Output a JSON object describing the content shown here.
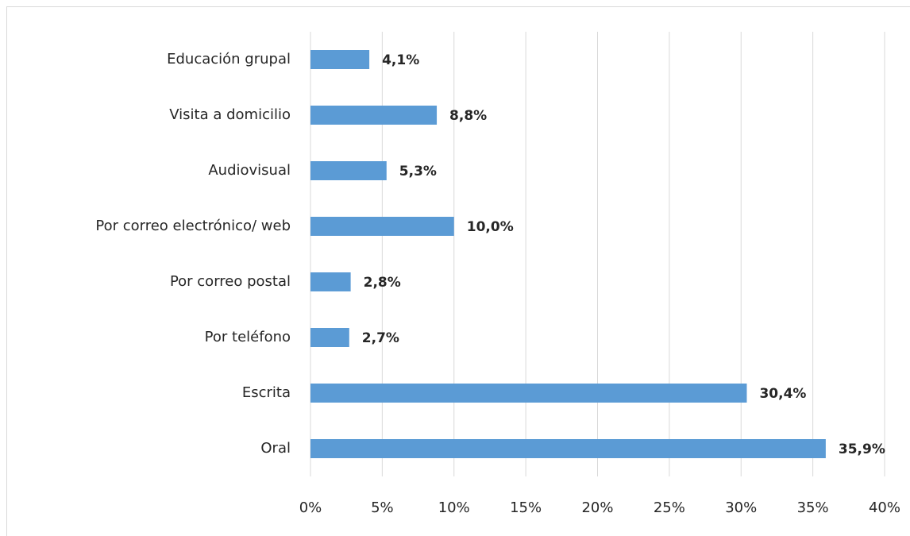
{
  "chart_data": {
    "type": "bar",
    "orientation": "horizontal",
    "categories": [
      "Educación grupal",
      "Visita a domicilio",
      "Audiovisual",
      "Por correo electrónico/ web",
      "Por correo postal",
      "Por teléfono",
      "Escrita",
      "Oral"
    ],
    "values": [
      4.1,
      8.8,
      5.3,
      10.0,
      2.8,
      2.7,
      30.4,
      35.9
    ],
    "value_labels": [
      "4,1%",
      "8,8%",
      "5,3%",
      "10,0%",
      "2,8%",
      "2,7%",
      "30,4%",
      "35,9%"
    ],
    "color": "#5b9bd5",
    "xlim": [
      0,
      40
    ],
    "xticks": [
      {
        "value": 0,
        "label": "0%"
      },
      {
        "value": 5,
        "label": "5%"
      },
      {
        "value": 10,
        "label": "10%"
      },
      {
        "value": 15,
        "label": "15%"
      },
      {
        "value": 20,
        "label": "20%"
      },
      {
        "value": 25,
        "label": "25%"
      },
      {
        "value": 30,
        "label": "30%"
      },
      {
        "value": 35,
        "label": "35%"
      },
      {
        "value": 40,
        "label": "40%"
      }
    ],
    "grid": true
  }
}
